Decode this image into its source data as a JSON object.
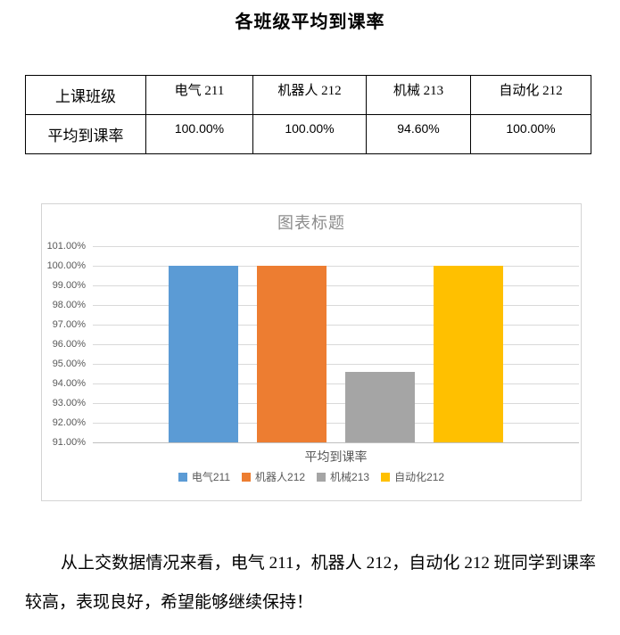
{
  "doc": {
    "title": "各班级平均到课率"
  },
  "table": {
    "rows": [
      {
        "cells": [
          "上课班级",
          "电气 211",
          "机器人 212",
          "机械 213",
          "自动化 212"
        ]
      },
      {
        "cells": [
          "平均到课率",
          "100.00%",
          "100.00%",
          "94.60%",
          "100.00%"
        ]
      }
    ]
  },
  "chart_data": {
    "type": "bar",
    "title": "图表标题",
    "xlabel": "平均到课率",
    "categories": [
      "平均到课率"
    ],
    "series": [
      {
        "name": "电气211",
        "value": 100.0,
        "color": "#5B9BD5"
      },
      {
        "name": "机器人212",
        "value": 100.0,
        "color": "#ED7D31"
      },
      {
        "name": "机械213",
        "value": 94.6,
        "color": "#A5A5A5"
      },
      {
        "name": "自动化212",
        "value": 100.0,
        "color": "#FFC000"
      }
    ],
    "ylim": [
      91,
      101
    ],
    "y_ticks": [
      "101.00%",
      "100.00%",
      "99.00%",
      "98.00%",
      "97.00%",
      "96.00%",
      "95.00%",
      "94.00%",
      "93.00%",
      "92.00%",
      "91.00%"
    ],
    "grid": true,
    "legend_position": "bottom",
    "text_color": "#595959",
    "gridline_color": "#D9D9D9"
  },
  "paragraph": {
    "text": "从上交数据情况来看，电气 211，机器人 212，自动化 212 班同学到课率较高，表现良好，希望能够继续保持！"
  }
}
